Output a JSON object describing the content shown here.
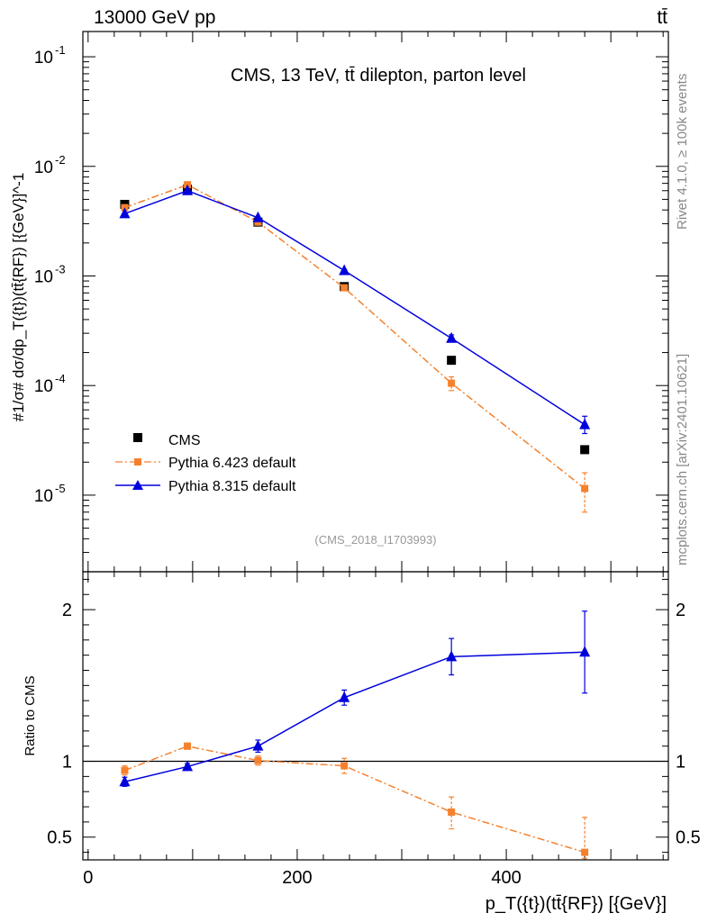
{
  "header": {
    "energy_label": "13000 GeV pp",
    "process_label": "tt̄"
  },
  "side_labels": {
    "rivet": "Rivet 4.1.0, ≥ 100k events",
    "source": "mcplots.cern.ch [arXiv:2401.10621]"
  },
  "colors": {
    "cms": "#000000",
    "pythia6": "#f5812d",
    "pythia8": "#0000dd"
  },
  "chart_data": [
    {
      "type": "line",
      "title": "CMS, 13 TeV, tt̄ dilepton, parton level",
      "analysis_id": "(CMS_2018_I1703993)",
      "ylabel": "#1/σ# dσ/dp_T({t})(tt̄{RF}) [{GeV}]^-1",
      "yscale": "log",
      "xlim": [
        -5,
        555
      ],
      "ylim": [
        2e-06,
        0.17
      ],
      "y_tick_labels": [
        "10^-5",
        "10^-4",
        "10^-3",
        "10^-2",
        "10^-1"
      ],
      "x": [
        35,
        95,
        162.5,
        245,
        347.5,
        475
      ],
      "series": [
        {
          "name": "CMS",
          "marker": "square",
          "values": [
            0.0045,
            0.0062,
            0.0031,
            0.0008,
            0.00017,
            2.6e-05
          ]
        },
        {
          "name": "Pythia 6.423 default",
          "marker": "square",
          "style": "dash-dot",
          "values": [
            0.0042,
            0.0068,
            0.0031,
            0.00078,
            0.000105,
            1.15e-05
          ],
          "err_low": [
            0.0,
            0.0,
            0.0,
            3e-05,
            1.5e-05,
            4.5e-06
          ],
          "err_high": [
            0.0,
            0.0,
            0.0,
            3e-05,
            1.5e-05,
            4.5e-06
          ]
        },
        {
          "name": "Pythia 8.315 default",
          "marker": "triangle",
          "style": "solid",
          "values": [
            0.0037,
            0.006,
            0.0034,
            0.00112,
            0.00027,
            4.4e-05
          ],
          "err_low": [
            0.0,
            0.0,
            0.0,
            2e-05,
            2e-05,
            7.5e-06
          ],
          "err_high": [
            0.0,
            0.0,
            0.0,
            2e-05,
            2e-05,
            8.5e-06
          ]
        }
      ]
    },
    {
      "type": "line",
      "ylabel": "Ratio to CMS",
      "xlabel": "p_T({t})(tt̄{RF}) [{GeV}]",
      "xlim": [
        -5,
        555
      ],
      "ylim": [
        0.35,
        2.25
      ],
      "y_ticks": [
        0.5,
        1,
        2
      ],
      "x_ticks": [
        0,
        200,
        400
      ],
      "x": [
        35,
        95,
        162.5,
        245,
        347.5,
        475
      ],
      "series": [
        {
          "name": "Pythia 6.423 default",
          "style": "dash-dot",
          "values": [
            0.94,
            1.1,
            1.005,
            0.97,
            0.665,
            0.4
          ],
          "err_low": [
            0.03,
            0.02,
            0.03,
            0.05,
            0.11,
            0.04
          ],
          "err_high": [
            0.03,
            0.02,
            0.03,
            0.05,
            0.1,
            0.23
          ]
        },
        {
          "name": "Pythia 8.315 default",
          "style": "solid",
          "values": [
            0.865,
            0.965,
            1.1,
            1.42,
            1.69,
            1.72
          ],
          "err_low": [
            0.03,
            0.02,
            0.04,
            0.05,
            0.12,
            0.27
          ],
          "err_high": [
            0.03,
            0.02,
            0.04,
            0.05,
            0.12,
            0.27
          ]
        }
      ]
    }
  ]
}
